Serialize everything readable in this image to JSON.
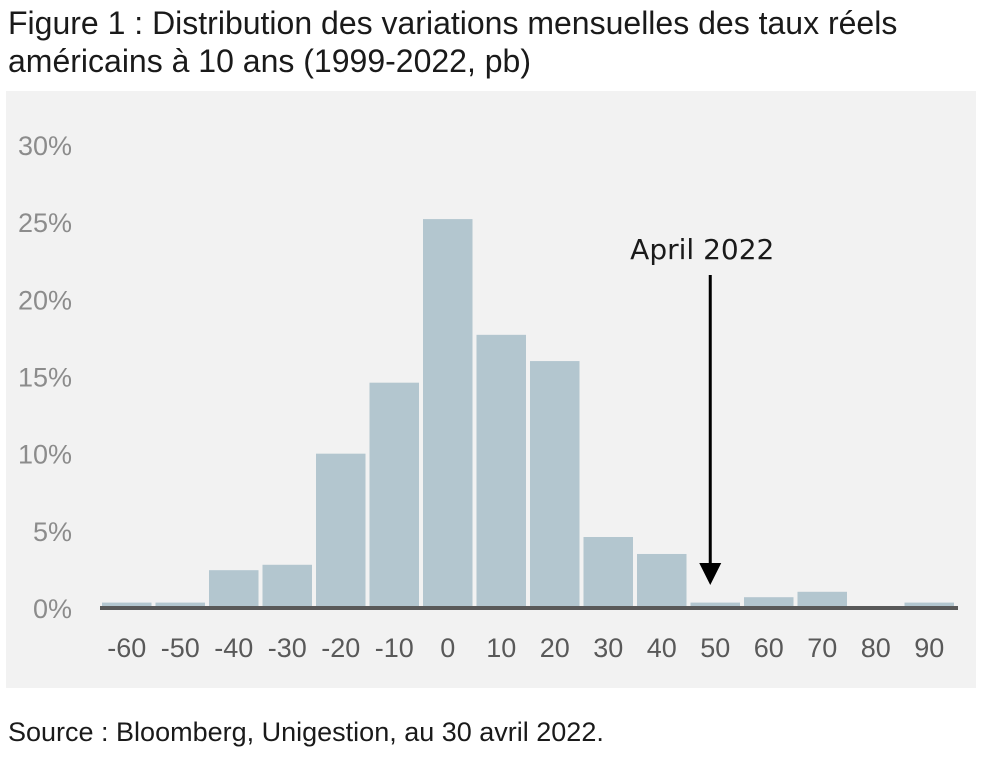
{
  "title": "Figure 1 : Distribution des variations mensuelles des taux réels américains à 10 ans (1999-2022, pb)",
  "source": "Source : Bloomberg, Unigestion, au 30 avril 2022.",
  "chart_data": {
    "type": "bar",
    "title": "Figure 1 : Distribution des variations mensuelles des taux réels américains à 10 ans (1999-2022, pb)",
    "categories": [
      "-60",
      "-50",
      "-40",
      "-30",
      "-20",
      "-10",
      "0",
      "10",
      "20",
      "30",
      "40",
      "50",
      "60",
      "70",
      "80",
      "90"
    ],
    "values": [
      0.35,
      0.35,
      2.45,
      2.8,
      10.0,
      14.6,
      25.2,
      17.7,
      16.0,
      4.6,
      3.5,
      0.35,
      0.7,
      1.05,
      0.0,
      0.35
    ],
    "ylim": [
      0,
      30
    ],
    "yticks": [
      0,
      5,
      10,
      15,
      20,
      25,
      30
    ],
    "ytick_labels": [
      "0%",
      "5%",
      "10%",
      "15%",
      "20%",
      "25%",
      "30%"
    ],
    "xlabel": "",
    "ylabel": "",
    "grid": false,
    "bar_color": "#b3c6cf",
    "annotation": {
      "text": "April 2022",
      "category": "50"
    }
  }
}
